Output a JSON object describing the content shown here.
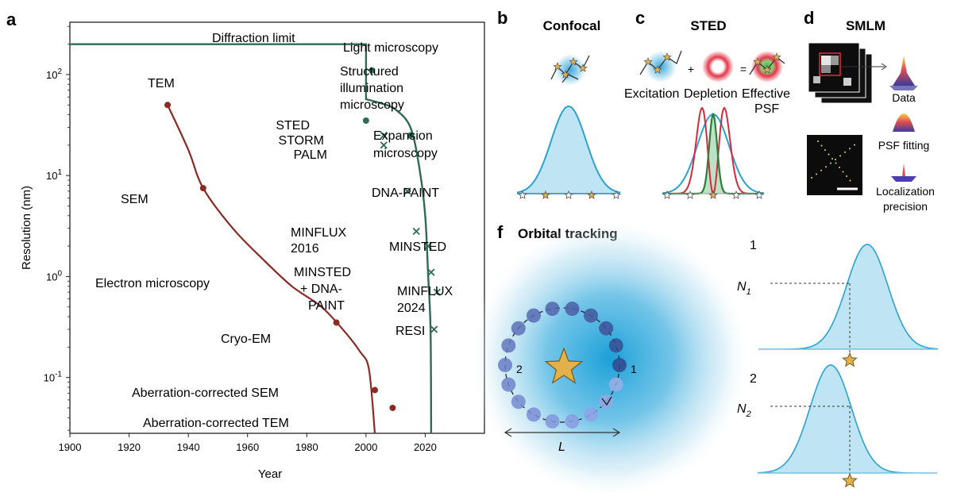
{
  "panels": {
    "a": {
      "label": "a",
      "chart_data": {
        "type": "line",
        "xlabel": "Year",
        "ylabel": "Resolution (nm)",
        "xlim": [
          1900,
          2040
        ],
        "xticks": [
          "1900",
          "1920",
          "1940",
          "1960",
          "1980",
          "2000",
          "2020"
        ],
        "xtick_values": [
          1900,
          1920,
          1940,
          1960,
          1980,
          2000,
          2020
        ],
        "ylim": [
          0.028,
          330
        ],
        "yscale": "log",
        "ytick_labels": [
          "10^-1",
          "10^0",
          "10^1",
          "10^2"
        ],
        "ytick_values": [
          0.1,
          1,
          10,
          100
        ],
        "series": [
          {
            "name": "Light microscopy",
            "color": "#2e6b57",
            "curve": [
              [
                1900,
                200
              ],
              [
                2000,
                200
              ],
              [
                2000,
                57
              ],
              [
                2005,
                52
              ],
              [
                2010,
                45
              ],
              [
                2015,
                30
              ],
              [
                2018,
                12
              ],
              [
                2020,
                4
              ],
              [
                2021,
                1
              ],
              [
                2021.8,
                0.3
              ],
              [
                2022,
                0.028
              ]
            ],
            "points": [
              {
                "label": "Structured illumination microscopy",
                "x": 2002,
                "y": 110,
                "marker": "dot"
              },
              {
                "label": "STED",
                "x": 2000,
                "y": 35,
                "marker": "dot"
              },
              {
                "label": "Expansion microscopy",
                "x": 2015,
                "y": 25,
                "marker": "dot"
              },
              {
                "label": "STORM",
                "x": 2006,
                "y": 25,
                "marker": "x"
              },
              {
                "label": "PALM",
                "x": 2006,
                "y": 20,
                "marker": "x"
              },
              {
                "label": "DNA-PAINT",
                "x": 2014,
                "y": 7,
                "marker": "x"
              },
              {
                "label": "MINFLUX 2016",
                "x": 2017,
                "y": 2.8,
                "marker": "x"
              },
              {
                "label": "MINSTED",
                "x": 2021,
                "y": 2,
                "marker": "x"
              },
              {
                "label": "MINSTED + DNA-PAINT",
                "x": 2022,
                "y": 1.1,
                "marker": "x"
              },
              {
                "label": "MINFLUX 2024",
                "x": 2024,
                "y": 0.7,
                "marker": "x"
              },
              {
                "label": "RESI",
                "x": 2023,
                "y": 0.3,
                "marker": "x"
              }
            ]
          },
          {
            "name": "Electron microscopy",
            "color": "#8b2a25",
            "curve": [
              [
                1933,
                50
              ],
              [
                1940,
                18
              ],
              [
                1945,
                7.5
              ],
              [
                1955,
                3
              ],
              [
                1965,
                1.5
              ],
              [
                1975,
                0.8
              ],
              [
                1985,
                0.5
              ],
              [
                1993,
                0.28
              ],
              [
                1998,
                0.18
              ],
              [
                2001,
                0.12
              ],
              [
                2003,
                0.028
              ]
            ],
            "points": [
              {
                "label": "TEM",
                "x": 1933,
                "y": 50
              },
              {
                "label": "SEM",
                "x": 1945,
                "y": 7.5
              },
              {
                "label": "Cryo-EM",
                "x": 1990,
                "y": 0.35
              },
              {
                "label": "Aberration-corrected SEM",
                "x": 2003,
                "y": 0.075
              },
              {
                "label": "Aberration-corrected TEM",
                "x": 2009,
                "y": 0.05
              }
            ]
          }
        ],
        "annotations": {
          "diffraction_limit": "Diffraction limit",
          "light_microscopy": "Light microscopy",
          "electron_microscopy": "Electron microscopy",
          "tem": "TEM",
          "sem": "SEM",
          "cryo_em": "Cryo-EM",
          "ac_sem": "Aberration-corrected SEM",
          "ac_tem": "Aberration-corrected TEM",
          "sim_1": "Structured",
          "sim_2": "illumination",
          "sim_3": "microscopy",
          "sted": "STED",
          "storm": "STORM",
          "palm": "PALM",
          "exp_1": "Expansion",
          "exp_2": "microscopy",
          "dnapaint": "DNA-PAINT",
          "minflux16_1": "MINFLUX",
          "minflux16_2": "2016",
          "minsted": "MINSTED",
          "mdp_1": "MINSTED",
          "mdp_2": "+ DNA-",
          "mdp_3": "PAINT",
          "minflux24_1": "MINFLUX",
          "minflux24_2": "2024",
          "resi": "RESI"
        }
      }
    },
    "b": {
      "label": "b",
      "title": "Confocal",
      "color": "#2aa3d0",
      "fill": "#bfe4f3"
    },
    "c": {
      "label": "c",
      "title": "STED",
      "plus": "+",
      "equals": "=",
      "excitation": "Excitation",
      "depletion": "Depletion",
      "effective_1": "Effective",
      "effective_2": "PSF",
      "colors": {
        "excitation": "#2aa3d0",
        "depletion": "#d8283c",
        "effective": "#2f7d3c"
      }
    },
    "d": {
      "label": "d",
      "title": "SMLM",
      "data": "Data",
      "psf_fitting": "PSF fitting",
      "loc_1": "Localization",
      "loc_2": "precision"
    },
    "f": {
      "label": "f",
      "title": "Orbital tracking",
      "pos1": "1",
      "pos2": "2",
      "length": "L",
      "n1_base": "N",
      "n1_sub": "1",
      "n2_base": "N",
      "n2_sub": "2",
      "star_color": "#e2b14a",
      "beam_color": "#1aa0d8"
    }
  }
}
